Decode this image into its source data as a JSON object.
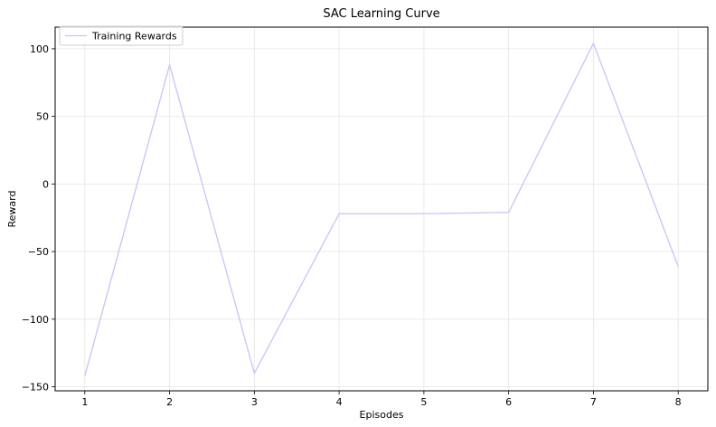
{
  "chart_data": {
    "type": "line",
    "title": "SAC Learning Curve",
    "xlabel": "Episodes",
    "ylabel": "Reward",
    "x": [
      1,
      2,
      3,
      4,
      5,
      6,
      7,
      8
    ],
    "xticks": [
      1,
      2,
      3,
      4,
      5,
      6,
      7,
      8
    ],
    "yticks": [
      -150,
      -100,
      -50,
      0,
      50,
      100
    ],
    "xlim": [
      0.65,
      8.35
    ],
    "ylim": [
      -153,
      116
    ],
    "grid": true,
    "legend_position": "upper-left",
    "series": [
      {
        "name": "Training Rewards",
        "color": "#c9c3f5",
        "values": [
          -142,
          88,
          -140,
          -22,
          -22,
          -21,
          104,
          -61
        ]
      }
    ]
  }
}
